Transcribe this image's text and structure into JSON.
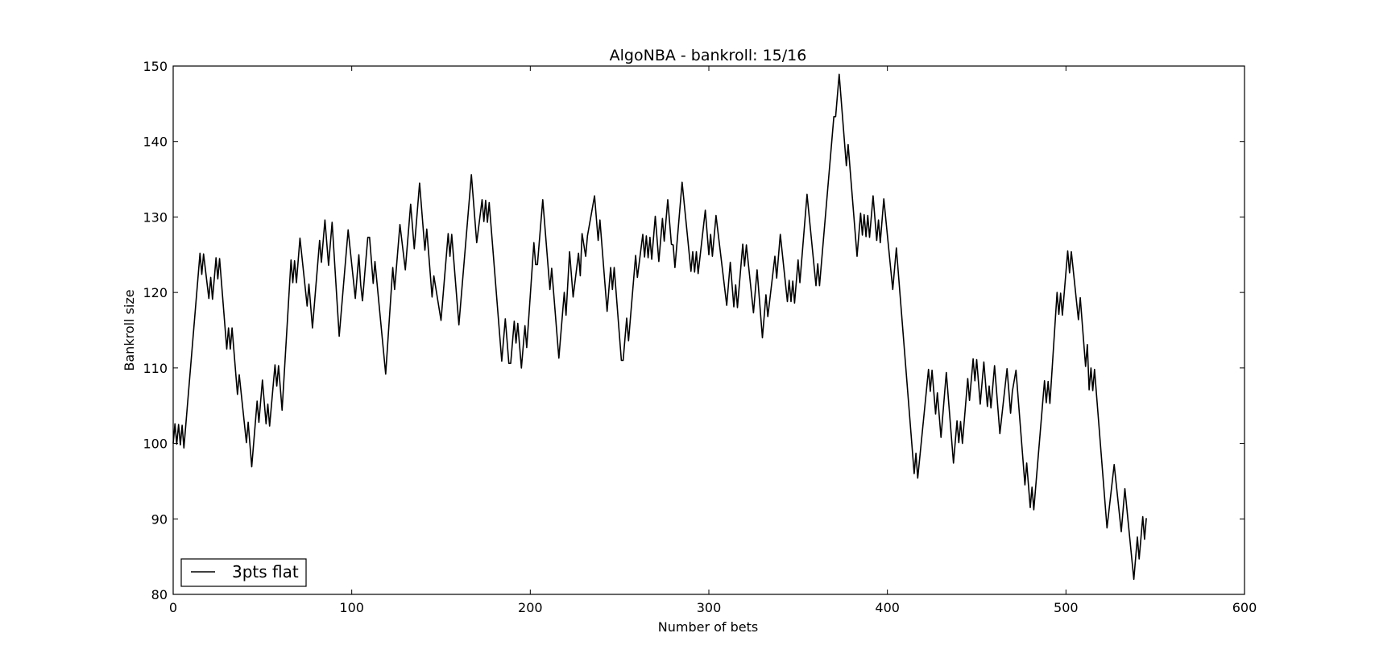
{
  "chart_data": {
    "type": "line",
    "title": "AlgoNBA - bankroll: 15/16",
    "xlabel": "Number of bets",
    "ylabel": "Bankroll size",
    "xlim": [
      0,
      600
    ],
    "ylim": [
      80,
      150
    ],
    "xticks": [
      0,
      100,
      200,
      300,
      400,
      500,
      600
    ],
    "yticks": [
      80,
      90,
      100,
      110,
      120,
      130,
      140,
      150
    ],
    "grid": false,
    "legend": "bottom-left",
    "series": [
      {
        "name": "3pts flat",
        "color": "#000000",
        "points": [
          [
            0,
            100
          ],
          [
            1,
            102.6
          ],
          [
            2,
            99.9
          ],
          [
            3,
            102.5
          ],
          [
            4,
            99.8
          ],
          [
            5,
            102.4
          ],
          [
            6,
            99.4
          ],
          [
            15,
            125.2
          ],
          [
            16,
            122.4
          ],
          [
            17,
            125.1
          ],
          [
            20,
            119.2
          ],
          [
            21,
            122.0
          ],
          [
            22,
            119.1
          ],
          [
            23,
            121.8
          ],
          [
            24,
            124.6
          ],
          [
            25,
            121.8
          ],
          [
            26,
            124.5
          ],
          [
            30,
            112.5
          ],
          [
            31,
            115.3
          ],
          [
            32,
            112.5
          ],
          [
            33,
            115.3
          ],
          [
            36,
            106.5
          ],
          [
            37,
            109.1
          ],
          [
            41,
            100.1
          ],
          [
            42,
            102.8
          ],
          [
            44,
            96.9
          ],
          [
            47,
            105.6
          ],
          [
            48,
            102.8
          ],
          [
            50,
            108.4
          ],
          [
            52,
            102.6
          ],
          [
            53,
            105.2
          ],
          [
            54,
            102.3
          ],
          [
            57,
            110.4
          ],
          [
            58,
            107.6
          ],
          [
            59,
            110.3
          ],
          [
            61,
            104.4
          ],
          [
            66,
            124.3
          ],
          [
            67,
            121.3
          ],
          [
            68,
            124.2
          ],
          [
            69,
            121.3
          ],
          [
            71,
            127.2
          ],
          [
            75,
            118.2
          ],
          [
            76,
            121.1
          ],
          [
            78,
            115.3
          ],
          [
            82,
            126.9
          ],
          [
            83,
            124.0
          ],
          [
            85,
            129.6
          ],
          [
            87,
            123.6
          ],
          [
            89,
            129.3
          ],
          [
            93,
            114.2
          ],
          [
            98,
            128.3
          ],
          [
            102,
            119.2
          ],
          [
            104,
            125.0
          ],
          [
            105,
            121.0
          ],
          [
            106,
            118.9
          ],
          [
            107,
            121.7
          ],
          [
            109,
            127.3
          ],
          [
            110,
            127.3
          ],
          [
            112,
            121.2
          ],
          [
            113,
            124.1
          ],
          [
            119,
            109.2
          ],
          [
            123,
            123.3
          ],
          [
            124,
            120.4
          ],
          [
            127,
            129.0
          ],
          [
            130,
            123.0
          ],
          [
            133,
            131.7
          ],
          [
            135,
            125.8
          ],
          [
            138,
            134.5
          ],
          [
            141,
            125.6
          ],
          [
            142,
            128.4
          ],
          [
            145,
            119.4
          ],
          [
            146,
            122.2
          ],
          [
            150,
            116.3
          ],
          [
            154,
            127.8
          ],
          [
            155,
            124.8
          ],
          [
            156,
            127.7
          ],
          [
            160,
            115.7
          ],
          [
            167,
            135.6
          ],
          [
            170,
            126.6
          ],
          [
            173,
            132.3
          ],
          [
            174,
            129.4
          ],
          [
            175,
            132.2
          ],
          [
            176,
            129.3
          ],
          [
            177,
            131.9
          ],
          [
            184,
            110.9
          ],
          [
            186,
            116.5
          ],
          [
            187,
            113.6
          ],
          [
            188,
            110.6
          ],
          [
            189,
            110.6
          ],
          [
            191,
            116.2
          ],
          [
            192,
            113.3
          ],
          [
            193,
            115.9
          ],
          [
            195,
            110.0
          ],
          [
            197,
            115.6
          ],
          [
            198,
            112.7
          ],
          [
            202,
            126.6
          ],
          [
            203,
            123.7
          ],
          [
            204,
            123.7
          ],
          [
            207,
            132.3
          ],
          [
            211,
            120.4
          ],
          [
            212,
            123.2
          ],
          [
            216,
            111.3
          ],
          [
            219,
            120.0
          ],
          [
            220,
            117.0
          ],
          [
            222,
            125.4
          ],
          [
            224,
            119.4
          ],
          [
            227,
            125.2
          ],
          [
            228,
            122.2
          ],
          [
            229,
            127.8
          ],
          [
            231,
            124.8
          ],
          [
            232,
            127.5
          ],
          [
            236,
            132.8
          ],
          [
            238,
            126.9
          ],
          [
            239,
            129.6
          ],
          [
            243,
            117.5
          ],
          [
            245,
            123.3
          ],
          [
            246,
            120.4
          ],
          [
            247,
            123.3
          ],
          [
            251,
            111.0
          ],
          [
            252,
            111.0
          ],
          [
            254,
            116.6
          ],
          [
            255,
            113.6
          ],
          [
            259,
            124.9
          ],
          [
            260,
            122.0
          ],
          [
            263,
            127.7
          ],
          [
            264,
            124.7
          ],
          [
            265,
            127.5
          ],
          [
            266,
            124.6
          ],
          [
            267,
            127.3
          ],
          [
            268,
            124.4
          ],
          [
            270,
            130.1
          ],
          [
            272,
            124.1
          ],
          [
            274,
            129.8
          ],
          [
            275,
            126.8
          ],
          [
            277,
            132.3
          ],
          [
            279,
            126.4
          ],
          [
            280,
            126.3
          ],
          [
            281,
            123.3
          ],
          [
            285,
            134.6
          ],
          [
            290,
            122.8
          ],
          [
            291,
            125.4
          ],
          [
            292,
            122.7
          ],
          [
            293,
            125.4
          ],
          [
            294,
            122.5
          ],
          [
            298,
            130.9
          ],
          [
            300,
            125.0
          ],
          [
            301,
            127.7
          ],
          [
            302,
            124.8
          ],
          [
            304,
            130.2
          ],
          [
            310,
            118.3
          ],
          [
            312,
            124.0
          ],
          [
            314,
            118.1
          ],
          [
            315,
            121.0
          ],
          [
            316,
            118.0
          ],
          [
            319,
            126.4
          ],
          [
            320,
            123.5
          ],
          [
            321,
            126.3
          ],
          [
            325,
            117.3
          ],
          [
            327,
            123.0
          ],
          [
            330,
            114.0
          ],
          [
            332,
            119.7
          ],
          [
            333,
            116.8
          ],
          [
            337,
            124.8
          ],
          [
            338,
            121.9
          ],
          [
            340,
            127.7
          ],
          [
            344,
            118.8
          ],
          [
            345,
            121.6
          ],
          [
            346,
            118.8
          ],
          [
            347,
            121.5
          ],
          [
            348,
            118.6
          ],
          [
            350,
            124.3
          ],
          [
            351,
            121.3
          ],
          [
            355,
            133.0
          ],
          [
            360,
            120.9
          ],
          [
            361,
            123.8
          ],
          [
            362,
            120.9
          ],
          [
            370,
            143.3
          ],
          [
            371,
            143.3
          ],
          [
            373,
            148.9
          ],
          [
            377,
            136.8
          ],
          [
            378,
            139.6
          ],
          [
            383,
            124.8
          ],
          [
            385,
            130.5
          ],
          [
            386,
            127.6
          ],
          [
            387,
            130.3
          ],
          [
            388,
            127.4
          ],
          [
            389,
            130.2
          ],
          [
            390,
            127.3
          ],
          [
            392,
            132.8
          ],
          [
            394,
            126.9
          ],
          [
            395,
            129.6
          ],
          [
            396,
            126.6
          ],
          [
            398,
            132.4
          ],
          [
            403,
            120.4
          ],
          [
            405,
            125.9
          ],
          [
            415,
            96.0
          ],
          [
            416,
            98.7
          ],
          [
            417,
            95.4
          ],
          [
            423,
            109.8
          ],
          [
            424,
            106.9
          ],
          [
            425,
            109.7
          ],
          [
            427,
            103.9
          ],
          [
            428,
            106.7
          ],
          [
            430,
            100.8
          ],
          [
            433,
            109.4
          ],
          [
            437,
            97.4
          ],
          [
            439,
            103.0
          ],
          [
            440,
            100.1
          ],
          [
            441,
            102.9
          ],
          [
            442,
            100.0
          ],
          [
            445,
            108.6
          ],
          [
            446,
            105.7
          ],
          [
            448,
            111.2
          ],
          [
            449,
            108.3
          ],
          [
            450,
            111.1
          ],
          [
            452,
            105.2
          ],
          [
            454,
            110.8
          ],
          [
            456,
            104.9
          ],
          [
            457,
            107.6
          ],
          [
            458,
            104.7
          ],
          [
            460,
            110.3
          ],
          [
            463,
            101.3
          ],
          [
            467,
            109.9
          ],
          [
            468,
            107.0
          ],
          [
            469,
            104.0
          ],
          [
            470,
            106.9
          ],
          [
            472,
            109.7
          ],
          [
            477,
            94.5
          ],
          [
            478,
            97.4
          ],
          [
            480,
            91.5
          ],
          [
            481,
            94.2
          ],
          [
            482,
            91.2
          ],
          [
            488,
            108.3
          ],
          [
            489,
            105.4
          ],
          [
            490,
            108.2
          ],
          [
            491,
            105.3
          ],
          [
            495,
            120.0
          ],
          [
            496,
            117.1
          ],
          [
            497,
            119.9
          ],
          [
            498,
            117.0
          ],
          [
            501,
            125.5
          ],
          [
            502,
            122.6
          ],
          [
            503,
            125.4
          ],
          [
            507,
            116.4
          ],
          [
            508,
            119.3
          ],
          [
            511,
            110.2
          ],
          [
            512,
            113.1
          ],
          [
            513,
            107.1
          ],
          [
            514,
            110.0
          ],
          [
            515,
            107.0
          ],
          [
            516,
            109.8
          ],
          [
            523,
            88.8
          ],
          [
            527,
            97.2
          ],
          [
            531,
            88.3
          ],
          [
            533,
            94.0
          ],
          [
            538,
            82.0
          ],
          [
            540,
            87.6
          ],
          [
            541,
            84.7
          ],
          [
            543,
            90.3
          ],
          [
            544,
            87.3
          ],
          [
            545,
            90.1
          ]
        ]
      }
    ]
  }
}
